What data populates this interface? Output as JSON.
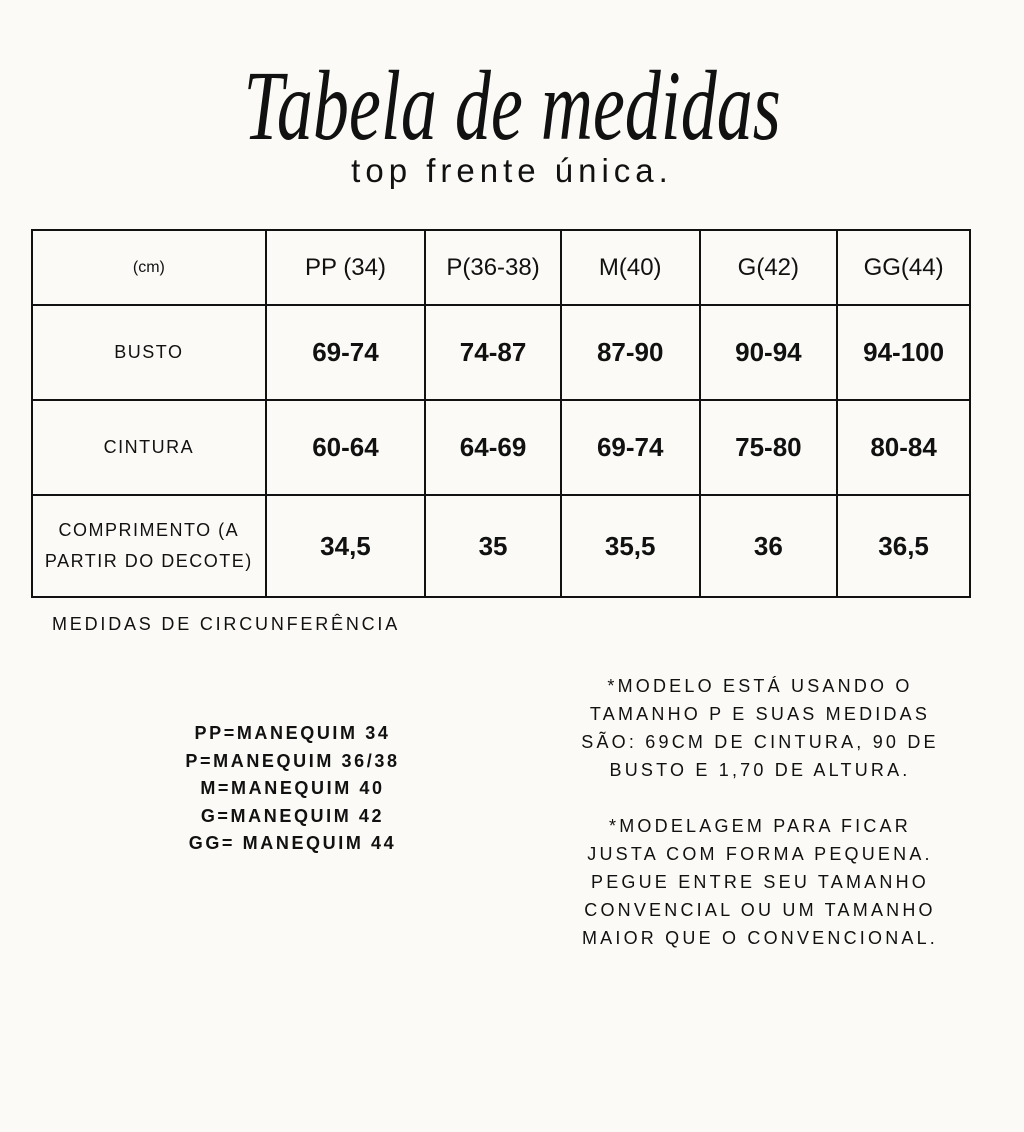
{
  "title": "Tabela de medidas",
  "subtitle": "top frente única.",
  "table": {
    "headers": [
      "(cm)",
      "PP (34)",
      "P(36-38)",
      "M(40)",
      "G(42)",
      "GG(44)"
    ],
    "rows": [
      {
        "label": "BUSTO",
        "values": [
          "69-74",
          "74-87",
          "87-90",
          "90-94",
          "94-100"
        ]
      },
      {
        "label": "CINTURA",
        "values": [
          "60-64",
          "64-69",
          "69-74",
          "75-80",
          "80-84"
        ]
      },
      {
        "label": "COMPRIMENTO (A PARTIR DO DECOTE)",
        "values": [
          "34,5",
          "35",
          "35,5",
          "36",
          "36,5"
        ]
      }
    ]
  },
  "note": "MEDIDAS DE CIRCUNFERÊNCIA",
  "size_equivalents": [
    "PP=MANEQUIM 34",
    "P=MANEQUIM 36/38",
    "M=MANEQUIM 40",
    "G=MANEQUIM 42",
    "GG= MANEQUIM 44"
  ],
  "model_notes": [
    "*MODELO ESTÁ USANDO O TAMANHO P E SUAS MEDIDAS SÃO: 69CM DE CINTURA, 90 DE BUSTO E 1,70 DE ALTURA.",
    "*MODELAGEM PARA FICAR JUSTA COM FORMA PEQUENA. PEGUE ENTRE SEU TAMANHO CONVENCIAL OU UM TAMANHO MAIOR QUE O CONVENCIONAL."
  ]
}
